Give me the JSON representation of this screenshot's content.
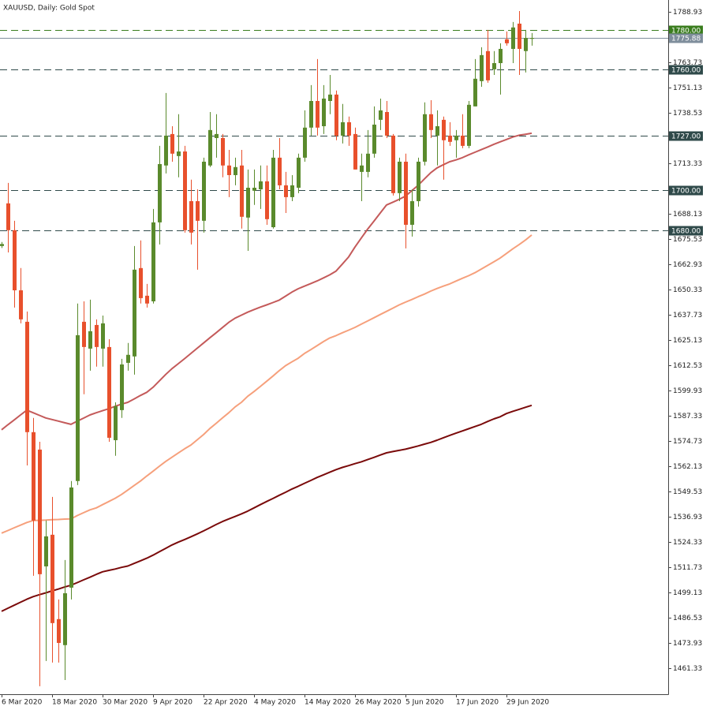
{
  "chart_data": {
    "type": "candlestick",
    "title": "XAUUSD, Daily:  Gold Spot",
    "categories": [
      "6 Mar 2020",
      null,
      null,
      null,
      null,
      null,
      null,
      null,
      "18 Mar 2020",
      null,
      null,
      null,
      null,
      null,
      null,
      null,
      "30 Mar 2020",
      null,
      null,
      null,
      null,
      null,
      null,
      null,
      "9 Apr 2020",
      null,
      null,
      null,
      null,
      null,
      null,
      null,
      "22 Apr 2020",
      null,
      null,
      null,
      null,
      null,
      null,
      null,
      "4 May 2020",
      null,
      null,
      null,
      null,
      null,
      null,
      null,
      "14 May 2020",
      null,
      null,
      null,
      null,
      null,
      null,
      null,
      "26 May 2020",
      null,
      null,
      null,
      null,
      null,
      null,
      null,
      "5 Jun 2020",
      null,
      null,
      null,
      null,
      null,
      null,
      null,
      "17 Jun 2020",
      null,
      null,
      null,
      null,
      null,
      null,
      null,
      "29 Jun 2020",
      null,
      null,
      null,
      null
    ],
    "open": [
      1672.0,
      1693.3,
      1679.9,
      1649.9,
      1634.2,
      1579.1,
      1570.4,
      1512.1,
      1527.9,
      1485.8,
      1472.8,
      1501.5,
      1554.7,
      1634.2,
      1620.8,
      1632.6,
      1620.8,
      1621.6,
      1575.1,
      1590.1,
      1613.7,
      1616.9,
      1661.0,
      1647.2,
      1644.4,
      1683.8,
      1712.2,
      1727.9,
      1716.9,
      1719.2,
      1694.4,
      1694.4,
      1684.6,
      1712.2,
      1725.9,
      1725.9,
      1712.2,
      1707.4,
      1712.2,
      1686.2,
      1699.6,
      1700.3,
      1704.3,
      1681.4,
      1716.1,
      1702.3,
      1696.4,
      1701.1,
      1716.1,
      1731.1,
      1744.4,
      1731.8,
      1744.4,
      1747.6,
      1727.1,
      1733.8,
      1727.9,
      1709.0,
      1709.0,
      1718.1,
      1735.0,
      1738.9,
      1727.1,
      1698.4,
      1714.1,
      1682.6,
      1694.4,
      1714.1,
      1737.8,
      1727.1,
      1735.0,
      1727.1,
      1724.8,
      1727.1,
      1722.0,
      1741.7,
      1754.3,
      1769.3,
      1760.2,
      1763.3,
      1775.2,
      1770.4,
      1783.0,
      1769.3,
      1775.4
    ],
    "high": [
      1674.0,
      1703.5,
      1684.6,
      1661.0,
      1639.3,
      1586.2,
      1574.3,
      1535.0,
      1546.8,
      1495.6,
      1515.3,
      1554.7,
      1643.3,
      1644.4,
      1645.2,
      1635.4,
      1637.3,
      1625.5,
      1594.0,
      1615.7,
      1623.6,
      1672.0,
      1674.8,
      1653.1,
      1690.5,
      1722.0,
      1748.4,
      1731.8,
      1737.8,
      1722.0,
      1705.1,
      1700.3,
      1716.1,
      1738.9,
      1737.8,
      1727.9,
      1720.0,
      1716.1,
      1720.0,
      1710.2,
      1710.2,
      1712.2,
      1712.2,
      1720.0,
      1725.9,
      1709.0,
      1707.4,
      1718.1,
      1739.7,
      1752.3,
      1765.3,
      1752.3,
      1757.4,
      1749.6,
      1742.9,
      1736.6,
      1731.1,
      1718.1,
      1729.9,
      1741.7,
      1745.6,
      1744.4,
      1727.9,
      1716.1,
      1718.1,
      1700.3,
      1716.1,
      1743.7,
      1744.8,
      1739.7,
      1736.6,
      1733.8,
      1729.9,
      1737.8,
      1744.4,
      1765.3,
      1771.2,
      1779.9,
      1769.3,
      1773.2,
      1779.1,
      1783.8,
      1789.3,
      1779.9,
      1778.3
    ],
    "low": [
      1671.0,
      1668.8,
      1641.3,
      1633.4,
      1562.5,
      1507.4,
      1452.3,
      1464.9,
      1464.1,
      1464.1,
      1455.4,
      1495.6,
      1552.7,
      1598.0,
      1609.8,
      1611.8,
      1611.8,
      1574.3,
      1567.3,
      1586.2,
      1609.8,
      1607.8,
      1643.3,
      1641.3,
      1643.3,
      1672.8,
      1708.2,
      1714.1,
      1706.3,
      1678.7,
      1672.8,
      1660.2,
      1678.7,
      1711.4,
      1716.1,
      1706.3,
      1696.4,
      1702.3,
      1680.7,
      1669.6,
      1692.5,
      1690.5,
      1682.6,
      1680.7,
      1700.3,
      1688.5,
      1694.4,
      1698.4,
      1714.1,
      1727.1,
      1727.1,
      1727.9,
      1737.8,
      1724.8,
      1723.2,
      1722.0,
      1710.2,
      1694.4,
      1706.3,
      1716.1,
      1729.9,
      1725.9,
      1697.2,
      1694.4,
      1670.8,
      1676.7,
      1691.7,
      1712.2,
      1725.9,
      1712.2,
      1705.1,
      1722.0,
      1716.1,
      1720.8,
      1720.8,
      1741.7,
      1751.5,
      1753.5,
      1757.4,
      1747.6,
      1772.0,
      1763.3,
      1757.4,
      1758.6,
      1772.0
    ],
    "close": [
      1673.0,
      1679.9,
      1649.9,
      1635.4,
      1579.1,
      1535.0,
      1508.2,
      1527.1,
      1483.8,
      1473.9,
      1498.7,
      1551.5,
      1627.5,
      1621.6,
      1629.5,
      1621.6,
      1633.4,
      1576.3,
      1592.1,
      1612.9,
      1617.7,
      1660.2,
      1646.0,
      1643.3,
      1683.8,
      1712.9,
      1727.1,
      1718.1,
      1719.2,
      1679.9,
      1678.7,
      1684.6,
      1714.1,
      1729.9,
      1727.9,
      1712.2,
      1707.4,
      1711.4,
      1686.6,
      1701.1,
      1701.1,
      1704.3,
      1685.4,
      1716.1,
      1702.3,
      1696.4,
      1702.3,
      1716.1,
      1731.1,
      1744.4,
      1731.1,
      1745.6,
      1747.6,
      1727.1,
      1733.8,
      1727.1,
      1710.2,
      1712.2,
      1718.1,
      1732.6,
      1739.7,
      1727.1,
      1698.4,
      1714.1,
      1682.6,
      1694.4,
      1714.1,
      1737.8,
      1729.9,
      1731.8,
      1724.8,
      1724.0,
      1727.1,
      1722.0,
      1742.5,
      1755.5,
      1767.3,
      1754.7,
      1763.3,
      1770.4,
      1773.2,
      1781.1,
      1770.4,
      1775.9,
      1775.88
    ],
    "up_color": "#5a8a2c",
    "down_color": "#e8502c",
    "lines": [
      {
        "color": "#c45a5a",
        "values": [
          1580.3,
          1582.8,
          1585.2,
          1587.7,
          1590.1,
          1588.8,
          1587.5,
          1586.2,
          1585.4,
          1584.6,
          1583.8,
          1583.0,
          1584.6,
          1586.1,
          1587.7,
          1588.8,
          1589.8,
          1590.8,
          1592.0,
          1593.1,
          1594.0,
          1595.7,
          1597.4,
          1599.0,
          1601.5,
          1604.7,
          1607.9,
          1610.8,
          1613.3,
          1615.8,
          1618.4,
          1621.0,
          1623.6,
          1626.2,
          1628.7,
          1631.3,
          1633.9,
          1636.0,
          1637.5,
          1639.0,
          1640.3,
          1641.5,
          1642.6,
          1643.8,
          1645.0,
          1647.0,
          1649.0,
          1650.7,
          1652.0,
          1653.3,
          1654.6,
          1656.1,
          1657.6,
          1659.5,
          1663.0,
          1666.6,
          1671.5,
          1676.0,
          1680.4,
          1684.4,
          1688.5,
          1692.5,
          1693.9,
          1695.3,
          1696.9,
          1699.6,
          1702.3,
          1705.5,
          1708.6,
          1711.0,
          1712.6,
          1714.1,
          1715.0,
          1716.1,
          1717.5,
          1718.8,
          1720.1,
          1721.4,
          1722.8,
          1724.0,
          1725.2,
          1726.4,
          1727.3,
          1727.8,
          1728.3
        ]
      },
      {
        "color": "#f6a07c",
        "values": [
          1528.7,
          1530.0,
          1531.4,
          1532.7,
          1534.0,
          1535.0,
          1535.1,
          1535.2,
          1535.4,
          1535.5,
          1535.7,
          1535.8,
          1537.5,
          1538.9,
          1540.3,
          1541.3,
          1542.9,
          1544.5,
          1546.1,
          1548.0,
          1550.2,
          1552.5,
          1554.7,
          1557.2,
          1559.6,
          1562.1,
          1564.5,
          1566.6,
          1568.7,
          1570.8,
          1572.7,
          1575.3,
          1577.9,
          1580.9,
          1583.5,
          1586.2,
          1588.8,
          1591.7,
          1594.0,
          1597.0,
          1599.4,
          1601.9,
          1604.5,
          1607.1,
          1609.8,
          1612.3,
          1614.2,
          1616.0,
          1618.4,
          1620.3,
          1622.3,
          1624.3,
          1626.1,
          1627.3,
          1628.7,
          1630.0,
          1631.4,
          1633.0,
          1634.6,
          1636.2,
          1637.8,
          1639.4,
          1641.0,
          1642.6,
          1644.0,
          1645.3,
          1646.7,
          1648.0,
          1649.5,
          1650.8,
          1652.0,
          1653.1,
          1654.5,
          1655.9,
          1657.2,
          1658.7,
          1660.5,
          1662.3,
          1664.1,
          1666.0,
          1668.3,
          1670.6,
          1672.7,
          1675.0,
          1677.5
        ]
      },
      {
        "color": "#7a0a0a",
        "values": [
          1489.7,
          1491.2,
          1492.7,
          1494.2,
          1495.7,
          1497.0,
          1498.0,
          1498.9,
          1499.9,
          1500.8,
          1501.8,
          1502.7,
          1504.0,
          1505.4,
          1506.7,
          1508.1,
          1509.4,
          1510.1,
          1510.8,
          1511.6,
          1512.3,
          1513.6,
          1514.9,
          1516.2,
          1517.7,
          1519.4,
          1521.1,
          1522.8,
          1524.2,
          1525.5,
          1526.9,
          1528.3,
          1529.8,
          1531.4,
          1533.0,
          1534.5,
          1535.8,
          1537.0,
          1538.3,
          1539.7,
          1541.3,
          1542.9,
          1544.5,
          1546.0,
          1547.6,
          1549.1,
          1550.7,
          1552.1,
          1553.6,
          1555.0,
          1556.5,
          1557.8,
          1559.1,
          1560.4,
          1561.5,
          1562.4,
          1563.4,
          1564.3,
          1565.4,
          1566.5,
          1567.7,
          1568.8,
          1569.4,
          1570.0,
          1570.6,
          1571.4,
          1572.2,
          1573.1,
          1574.0,
          1575.1,
          1576.3,
          1577.5,
          1578.6,
          1579.7,
          1580.8,
          1581.9,
          1583.0,
          1584.4,
          1585.7,
          1586.8,
          1588.4,
          1589.5,
          1590.5,
          1591.5,
          1592.5
        ]
      }
    ],
    "ylim": [
      1448.3,
      1794.8
    ],
    "yticks": [
      1461.33,
      1473.93,
      1486.53,
      1499.13,
      1511.73,
      1524.33,
      1536.93,
      1549.53,
      1562.13,
      1574.73,
      1587.33,
      1599.93,
      1612.53,
      1625.13,
      1637.73,
      1650.33,
      1662.93,
      1675.53,
      1688.13,
      1713.33,
      1738.53,
      1751.13,
      1763.73,
      1788.93
    ],
    "levels": [
      {
        "value": 1780,
        "label": "1780.00",
        "color": "#3a7d1e"
      },
      {
        "value": 1760,
        "label": "1760.00",
        "color": "#2f4a4a"
      },
      {
        "value": 1727,
        "label": "1727.00",
        "color": "#2f4a4a"
      },
      {
        "value": 1700,
        "label": "1700.00",
        "color": "#2f4a4a"
      },
      {
        "value": 1680,
        "label": "1680.00",
        "color": "#2f4a4a"
      }
    ],
    "current_price": {
      "value": 1775.88,
      "label": "1775.88",
      "color": "#7f8e9c"
    }
  }
}
